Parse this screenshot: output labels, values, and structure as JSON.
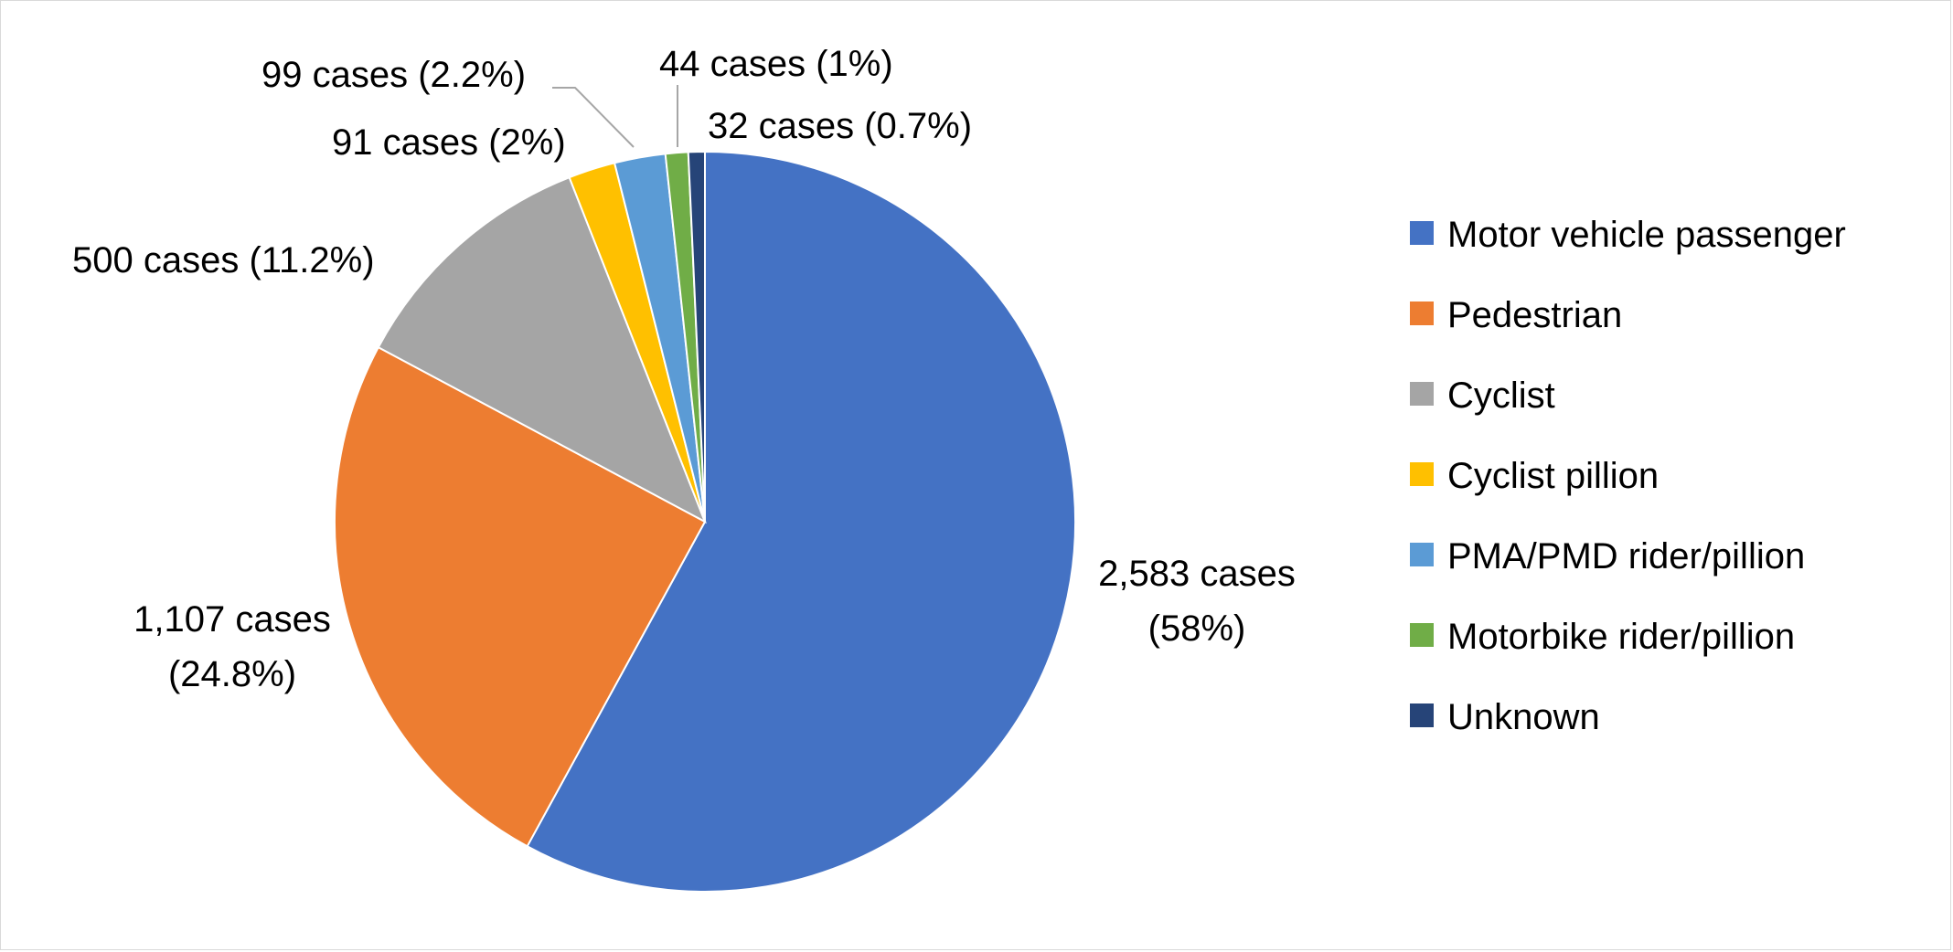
{
  "chart_data": {
    "type": "pie",
    "title": "",
    "start_angle_deg": 0,
    "direction": "clockwise",
    "legend_position": "right",
    "slices": [
      {
        "name": "Motor vehicle passenger",
        "value": 2583,
        "percent": 58,
        "color": "#4472C4",
        "label_line1": "2,583 cases",
        "label_line2": "(58%)"
      },
      {
        "name": "Pedestrian",
        "value": 1107,
        "percent": 24.8,
        "color": "#ED7D31",
        "label_line1": "1,107 cases",
        "label_line2": "(24.8%)"
      },
      {
        "name": "Cyclist",
        "value": 500,
        "percent": 11.2,
        "color": "#A5A5A5",
        "label_line1": "500 cases (11.2%)",
        "label_line2": ""
      },
      {
        "name": "Cyclist pillion",
        "value": 91,
        "percent": 2,
        "color": "#FFC000",
        "label_line1": "91 cases (2%)",
        "label_line2": ""
      },
      {
        "name": "PMA/PMD rider/pillion",
        "value": 99,
        "percent": 2.2,
        "color": "#5B9BD5",
        "label_line1": "99 cases (2.2%)",
        "label_line2": ""
      },
      {
        "name": "Motorbike rider/pillion",
        "value": 44,
        "percent": 1,
        "color": "#70AD47",
        "label_line1": "44 cases (1%)",
        "label_line2": ""
      },
      {
        "name": "Unknown",
        "value": 32,
        "percent": 0.7,
        "color": "#264478",
        "label_line1": "32 cases (0.7%)",
        "label_line2": ""
      }
    ]
  }
}
